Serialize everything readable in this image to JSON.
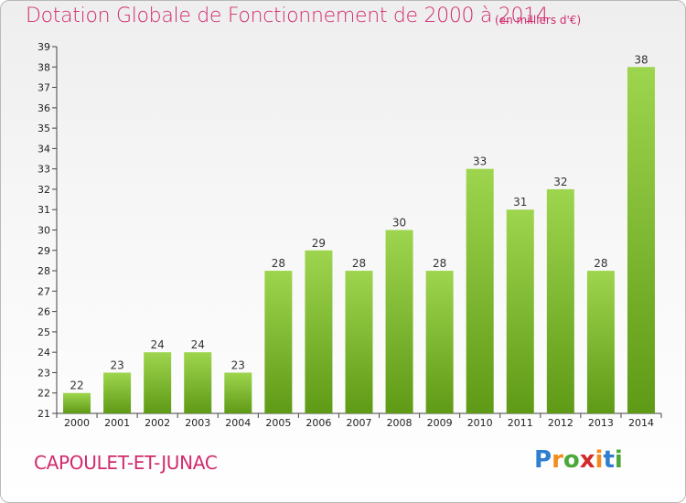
{
  "title": "Dotation Globale de Fonctionnement de 2000 à 2014",
  "subtitle": "(en milliers d'€)",
  "commune": "CAPOULET-ET-JUNAC",
  "logo": {
    "letters": [
      "P",
      "r",
      "o",
      "x",
      "i",
      "t",
      "i"
    ],
    "colors": [
      "#2f7fd0",
      "#f28c1e",
      "#4aa83a",
      "#d12b2b",
      "#f28c1e",
      "#2f7fd0",
      "#4aa83a"
    ]
  },
  "colors": {
    "bar_light": "#9ed54e",
    "bar_dark": "#5f9a16",
    "title": "#d12b6e"
  },
  "chart_data": {
    "type": "bar",
    "categories": [
      "2000",
      "2001",
      "2002",
      "2003",
      "2004",
      "2005",
      "2006",
      "2007",
      "2008",
      "2009",
      "2010",
      "2011",
      "2012",
      "2013",
      "2014"
    ],
    "values": [
      22,
      23,
      24,
      24,
      23,
      28,
      29,
      28,
      30,
      28,
      33,
      31,
      32,
      28,
      38
    ],
    "title": "Dotation Globale de Fonctionnement de 2000 à 2014",
    "ylim": [
      21,
      39
    ],
    "yticks": [
      21,
      22,
      23,
      24,
      25,
      26,
      27,
      28,
      29,
      30,
      31,
      32,
      33,
      34,
      35,
      36,
      37,
      38,
      39
    ],
    "grid": false,
    "legend": "none"
  }
}
